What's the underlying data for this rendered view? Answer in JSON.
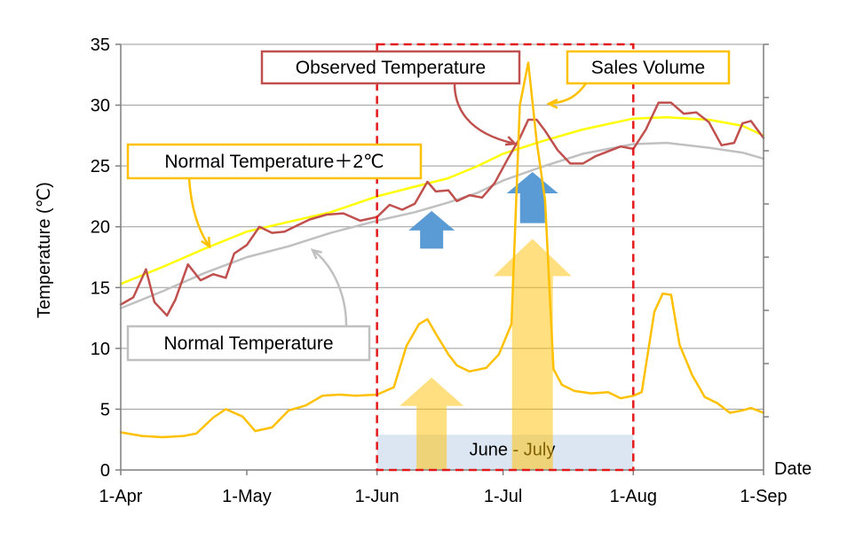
{
  "chart_data": {
    "type": "line",
    "title": "",
    "ylabel": "Temperature (℃)",
    "xlabel": "Date",
    "ylim": [
      0,
      35
    ],
    "yticks": [
      0,
      5,
      10,
      15,
      20,
      25,
      30,
      35
    ],
    "xlim": [
      0,
      153
    ],
    "xticks": [
      {
        "label": "1-Apr",
        "day": 0
      },
      {
        "label": "1-May",
        "day": 30
      },
      {
        "label": "1-Jun",
        "day": 61
      },
      {
        "label": "1-Jul",
        "day": 91
      },
      {
        "label": "1-Aug",
        "day": 122
      },
      {
        "label": "1-Sep",
        "day": 153
      }
    ],
    "grid": true,
    "series": [
      {
        "name": "Normal Temperature＋2℃",
        "color": "#ffff00",
        "points": [
          [
            0,
            15.3
          ],
          [
            10,
            16.7
          ],
          [
            20,
            18.2
          ],
          [
            30,
            19.6
          ],
          [
            40,
            20.4
          ],
          [
            50,
            21.2
          ],
          [
            61,
            22.5
          ],
          [
            70,
            23.3
          ],
          [
            78,
            24.0
          ],
          [
            85,
            25.0
          ],
          [
            91,
            26.0
          ],
          [
            100,
            27.0
          ],
          [
            110,
            28.0
          ],
          [
            122,
            28.9
          ],
          [
            130,
            29.0
          ],
          [
            140,
            28.8
          ],
          [
            148,
            28.3
          ],
          [
            153,
            27.5
          ]
        ]
      },
      {
        "name": "Normal Temperature",
        "color": "#c0c0c0",
        "points": [
          [
            0,
            13.3
          ],
          [
            10,
            14.7
          ],
          [
            20,
            16.2
          ],
          [
            30,
            17.5
          ],
          [
            40,
            18.4
          ],
          [
            50,
            19.5
          ],
          [
            61,
            20.5
          ],
          [
            70,
            21.2
          ],
          [
            78,
            22.0
          ],
          [
            85,
            22.8
          ],
          [
            91,
            23.8
          ],
          [
            100,
            24.9
          ],
          [
            110,
            26.0
          ],
          [
            122,
            26.8
          ],
          [
            130,
            26.9
          ],
          [
            140,
            26.5
          ],
          [
            148,
            26.1
          ],
          [
            153,
            25.6
          ]
        ]
      },
      {
        "name": "Observed Temperature",
        "color": "#c0504d",
        "points": [
          [
            0,
            13.6
          ],
          [
            3,
            14.2
          ],
          [
            6,
            16.5
          ],
          [
            8,
            13.8
          ],
          [
            11,
            12.7
          ],
          [
            13,
            14.0
          ],
          [
            16,
            16.9
          ],
          [
            19,
            15.6
          ],
          [
            22,
            16.1
          ],
          [
            25,
            15.8
          ],
          [
            27,
            17.8
          ],
          [
            30,
            18.5
          ],
          [
            33,
            20.0
          ],
          [
            36,
            19.5
          ],
          [
            39,
            19.6
          ],
          [
            42,
            20.1
          ],
          [
            45,
            20.6
          ],
          [
            49,
            21.0
          ],
          [
            53,
            21.1
          ],
          [
            57,
            20.5
          ],
          [
            61,
            20.8
          ],
          [
            64,
            21.8
          ],
          [
            67,
            21.4
          ],
          [
            70,
            21.9
          ],
          [
            73,
            23.7
          ],
          [
            75,
            22.9
          ],
          [
            78,
            23.0
          ],
          [
            80,
            22.1
          ],
          [
            83,
            22.6
          ],
          [
            86,
            22.4
          ],
          [
            89,
            23.6
          ],
          [
            92,
            25.5
          ],
          [
            95,
            27.3
          ],
          [
            97,
            28.8
          ],
          [
            99,
            28.8
          ],
          [
            101,
            27.9
          ],
          [
            104,
            26.3
          ],
          [
            107,
            25.2
          ],
          [
            110,
            25.2
          ],
          [
            113,
            25.8
          ],
          [
            116,
            26.2
          ],
          [
            119,
            26.6
          ],
          [
            122,
            26.4
          ],
          [
            125,
            28.0
          ],
          [
            128,
            30.2
          ],
          [
            131,
            30.2
          ],
          [
            134,
            29.3
          ],
          [
            137,
            29.4
          ],
          [
            140,
            28.6
          ],
          [
            143,
            26.7
          ],
          [
            146,
            26.9
          ],
          [
            148,
            28.5
          ],
          [
            150,
            28.7
          ],
          [
            153,
            27.3
          ]
        ]
      },
      {
        "name": "Sales Volume",
        "color": "#ffc000",
        "points": [
          [
            0,
            3.1
          ],
          [
            5,
            2.8
          ],
          [
            10,
            2.7
          ],
          [
            15,
            2.8
          ],
          [
            18,
            3.0
          ],
          [
            22,
            4.3
          ],
          [
            25,
            5.0
          ],
          [
            29,
            4.4
          ],
          [
            32,
            3.2
          ],
          [
            36,
            3.5
          ],
          [
            40,
            4.9
          ],
          [
            44,
            5.3
          ],
          [
            48,
            6.1
          ],
          [
            52,
            6.2
          ],
          [
            56,
            6.1
          ],
          [
            61,
            6.2
          ],
          [
            63,
            6.5
          ],
          [
            65,
            6.8
          ],
          [
            68,
            10.2
          ],
          [
            71,
            12.0
          ],
          [
            73,
            12.4
          ],
          [
            75,
            11.2
          ],
          [
            78,
            9.5
          ],
          [
            80,
            8.6
          ],
          [
            83,
            8.1
          ],
          [
            87,
            8.4
          ],
          [
            90,
            9.5
          ],
          [
            93,
            12.0
          ],
          [
            95,
            30.0
          ],
          [
            97,
            33.5
          ],
          [
            99,
            27.0
          ],
          [
            101,
            22.2
          ],
          [
            103,
            8.3
          ],
          [
            105,
            7.0
          ],
          [
            108,
            6.5
          ],
          [
            112,
            6.3
          ],
          [
            116,
            6.4
          ],
          [
            119,
            5.9
          ],
          [
            122,
            6.1
          ],
          [
            124,
            6.4
          ],
          [
            127,
            13.0
          ],
          [
            129,
            14.5
          ],
          [
            131,
            14.4
          ],
          [
            133,
            10.3
          ],
          [
            136,
            7.8
          ],
          [
            139,
            6.0
          ],
          [
            142,
            5.5
          ],
          [
            145,
            4.7
          ],
          [
            148,
            4.9
          ],
          [
            150,
            5.1
          ],
          [
            153,
            4.7
          ]
        ]
      }
    ],
    "annotations": {
      "highlight_label": "June - July",
      "callouts": [
        {
          "text": "Observed Temperature",
          "series": "Observed Temperature"
        },
        {
          "text": "Sales Volume",
          "series": "Sales Volume"
        },
        {
          "text": "Normal Temperature＋2℃",
          "series": "Normal Temperature＋2℃"
        },
        {
          "text": "Normal Temperature",
          "series": "Normal Temperature"
        }
      ]
    }
  }
}
